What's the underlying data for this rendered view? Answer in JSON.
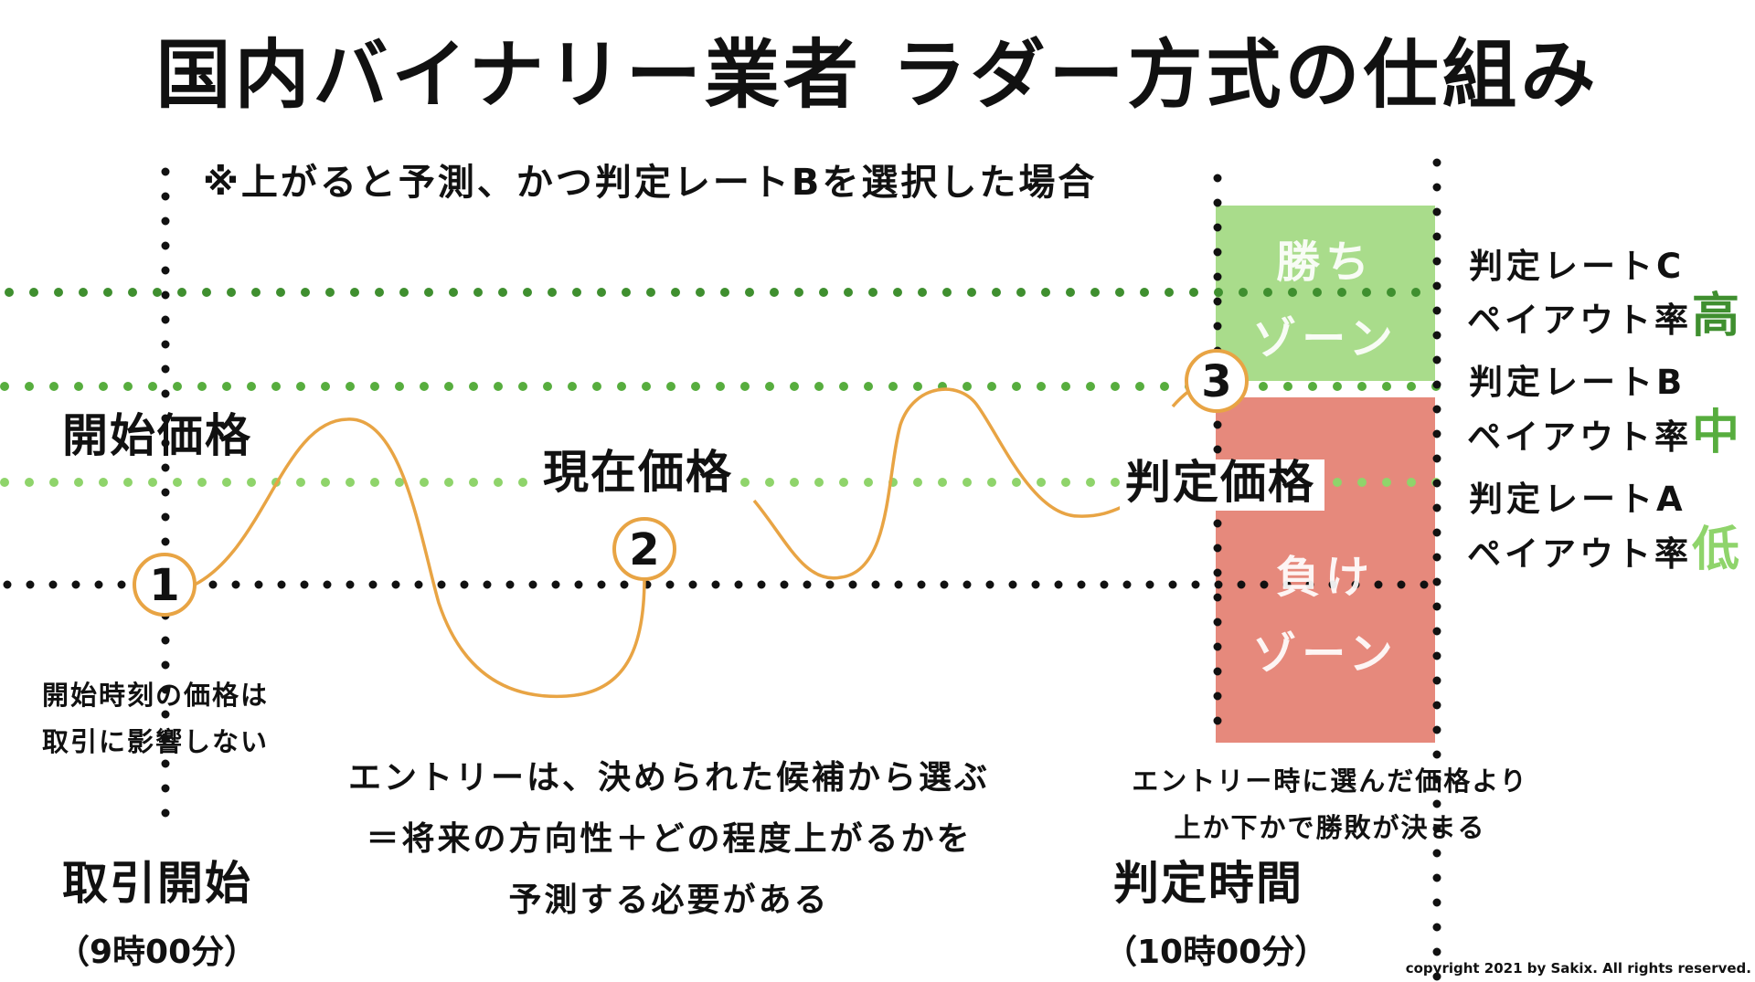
{
  "title": "国内バイナリー業者 ラダー方式の仕組み",
  "note": "※上がると予測、かつ判定レートBを選択した場合",
  "labels": {
    "start_price": "開始価格",
    "current_price": "現在価格",
    "judge_price": "判定価格",
    "trade_start": "取引開始",
    "trade_start_time": "（9時00分）",
    "judge_time": "判定時間",
    "judge_time_value": "（10時00分）",
    "start_note_line1": "開始時刻の価格は",
    "start_note_line2": "取引に影響しない",
    "entry_line1": "エントリーは、決められた候補から選ぶ",
    "entry_line2": "＝将来の方向性＋どの程度上がるかを",
    "entry_line3": "予測する必要がある",
    "judge_note_line1": "エントリー時に選んだ価格より",
    "judge_note_line2": "上か下かで勝敗が決まる"
  },
  "markers": [
    "1",
    "2",
    "3"
  ],
  "zones": {
    "win_line1": "勝ち",
    "win_line2": "ゾーン",
    "lose_line1": "負け",
    "lose_line2": "ゾーン",
    "win_color": "#a9dc8b",
    "lose_color": "#e6897c"
  },
  "rates": [
    {
      "name": "判定レートC",
      "payout_label": "ペイアウト率",
      "level": "高",
      "color": "#3f8f2f"
    },
    {
      "name": "判定レートB",
      "payout_label": "ペイアウト率",
      "level": "中",
      "color": "#57ad3e"
    },
    {
      "name": "判定レートA",
      "payout_label": "ペイアウト率",
      "level": "低",
      "color": "#8fd46b"
    }
  ],
  "colors": {
    "curve": "#e8a444",
    "rate_c_line": "#3f8f2f",
    "rate_b_line": "#57ad3e",
    "rate_a_line": "#8fd46b",
    "black_dots": "#111111"
  },
  "copyright": "copyright 2021 by Sakix. All rights reserved."
}
